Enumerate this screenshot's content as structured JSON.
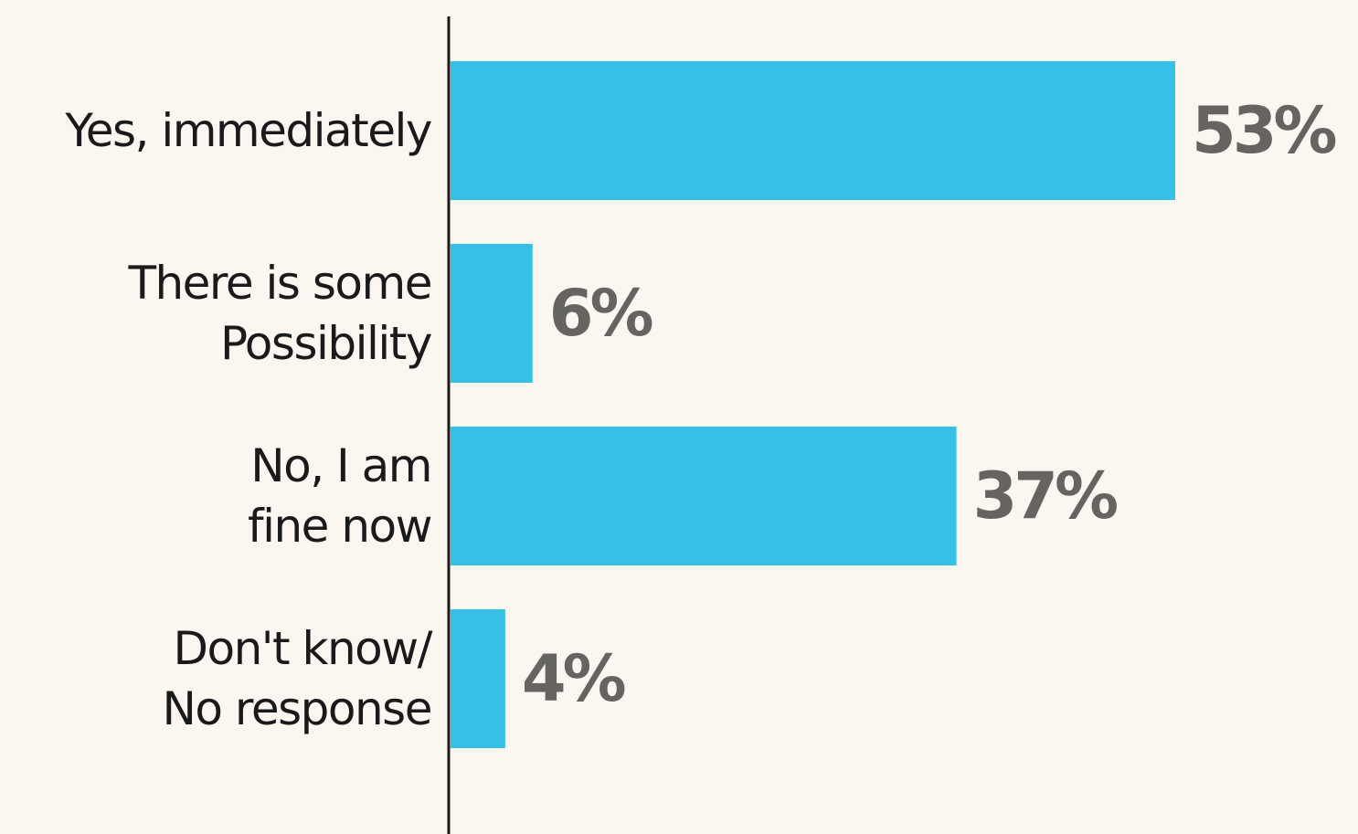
{
  "chart_data": {
    "type": "bar",
    "orientation": "horizontal",
    "categories": [
      [
        "Yes, immediately"
      ],
      [
        "There is some",
        "Possibility"
      ],
      [
        "No, I am",
        "fine now"
      ],
      [
        "Don't know/",
        "No response"
      ]
    ],
    "values": [
      53,
      6,
      37,
      4
    ],
    "value_labels": [
      "53%",
      "6%",
      "37%",
      "4%"
    ],
    "xlim": [
      0,
      53
    ],
    "title": "",
    "xlabel": "",
    "ylabel": "",
    "grid": false,
    "legend": "none",
    "colors": {
      "bar": "#35c1e6",
      "value_label": "#666460",
      "category_label": "#1a1a1a",
      "axis": "#1a1a1a",
      "background": "#fcf6f0"
    }
  }
}
